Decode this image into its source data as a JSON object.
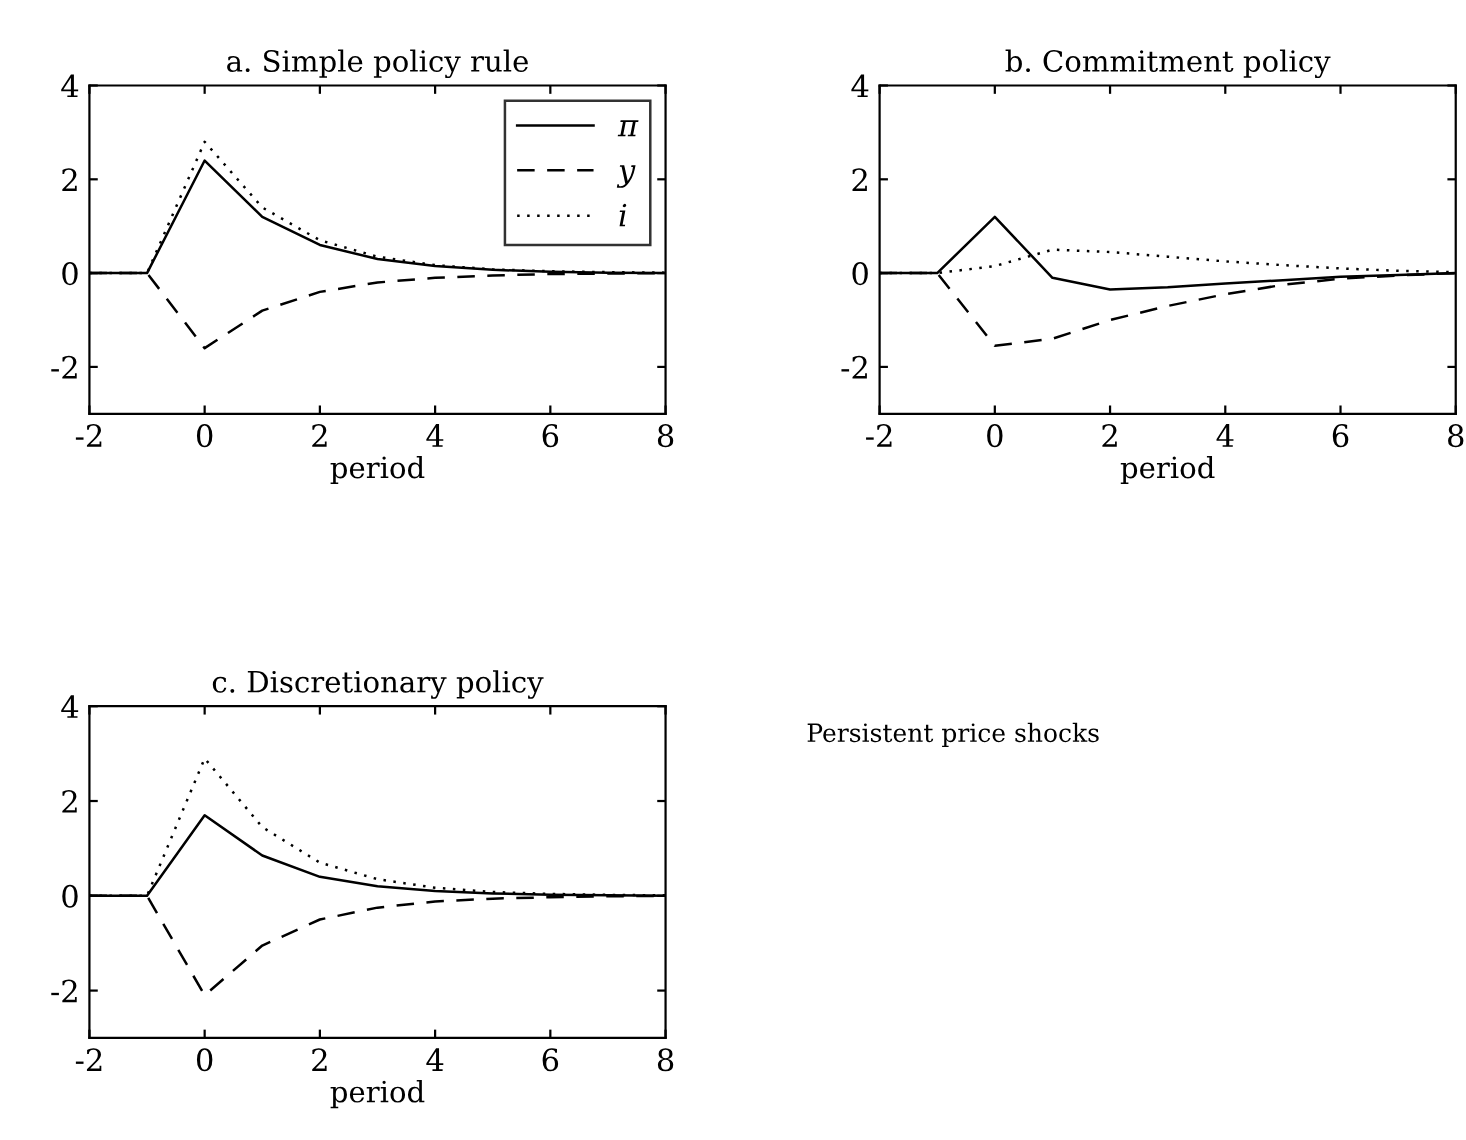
{
  "chart_data": [
    {
      "type": "line",
      "title": "a. Simple policy rule",
      "xlabel": "period",
      "x": [
        -2,
        -1,
        0,
        1,
        2,
        3,
        4,
        5,
        6,
        7,
        8
      ],
      "xlim": [
        -2,
        8
      ],
      "xticks": [
        -2,
        0,
        2,
        4,
        6,
        8
      ],
      "ylim": [
        -3,
        4
      ],
      "yticks": [
        -2,
        0,
        2,
        4
      ],
      "grid": false,
      "legend": "top right",
      "series": [
        {
          "name": "π",
          "color": "#000000",
          "line_style": "solid",
          "values": [
            0,
            0,
            2.4,
            1.2,
            0.6,
            0.3,
            0.15,
            0.07,
            0.03,
            0.01,
            0
          ]
        },
        {
          "name": "y",
          "color": "#000000",
          "line_style": "dashed",
          "values": [
            0,
            0,
            -1.6,
            -0.8,
            -0.4,
            -0.2,
            -0.1,
            -0.05,
            -0.02,
            -0.01,
            0
          ]
        },
        {
          "name": "i",
          "color": "#000000",
          "line_style": "dotted",
          "values": [
            0,
            0,
            2.8,
            1.4,
            0.7,
            0.35,
            0.17,
            0.08,
            0.04,
            0.02,
            0.01
          ]
        }
      ]
    },
    {
      "type": "line",
      "title": "b. Commitment policy",
      "xlabel": "period",
      "x": [
        -2,
        -1,
        0,
        1,
        2,
        3,
        4,
        5,
        6,
        7,
        8
      ],
      "xlim": [
        -2,
        8
      ],
      "xticks": [
        -2,
        0,
        2,
        4,
        6,
        8
      ],
      "ylim": [
        -3,
        4
      ],
      "yticks": [
        -2,
        0,
        2,
        4
      ],
      "grid": false,
      "series": [
        {
          "color": "#000000",
          "line_style": "solid",
          "values": [
            0,
            0,
            1.2,
            -0.1,
            -0.35,
            -0.3,
            -0.22,
            -0.15,
            -0.08,
            -0.04,
            0
          ]
        },
        {
          "color": "#000000",
          "line_style": "dashed",
          "values": [
            0,
            0,
            -1.55,
            -1.4,
            -1.0,
            -0.7,
            -0.45,
            -0.25,
            -0.12,
            -0.05,
            0
          ]
        },
        {
          "color": "#000000",
          "line_style": "dotted",
          "values": [
            0,
            0,
            0.15,
            0.5,
            0.45,
            0.35,
            0.25,
            0.17,
            0.1,
            0.05,
            0.02
          ]
        }
      ]
    },
    {
      "type": "line",
      "title": "c. Discretionary policy",
      "xlabel": "period",
      "x": [
        -2,
        -1,
        0,
        1,
        2,
        3,
        4,
        5,
        6,
        7,
        8
      ],
      "xlim": [
        -2,
        8
      ],
      "xticks": [
        -2,
        0,
        2,
        4,
        6,
        8
      ],
      "ylim": [
        -3,
        4
      ],
      "yticks": [
        -2,
        0,
        2,
        4
      ],
      "grid": false,
      "series": [
        {
          "color": "#000000",
          "line_style": "solid",
          "values": [
            0,
            0,
            1.7,
            0.85,
            0.4,
            0.2,
            0.1,
            0.05,
            0.02,
            0.01,
            0
          ]
        },
        {
          "color": "#000000",
          "line_style": "dashed",
          "values": [
            0,
            0,
            -2.1,
            -1.05,
            -0.5,
            -0.25,
            -0.12,
            -0.06,
            -0.03,
            -0.01,
            0
          ]
        },
        {
          "color": "#000000",
          "line_style": "dotted",
          "values": [
            0,
            0,
            2.9,
            1.45,
            0.7,
            0.35,
            0.17,
            0.08,
            0.04,
            0.02,
            0.01
          ]
        }
      ]
    },
    {
      "type": "other",
      "annotations": [
        "Persistent price shocks"
      ]
    }
  ]
}
